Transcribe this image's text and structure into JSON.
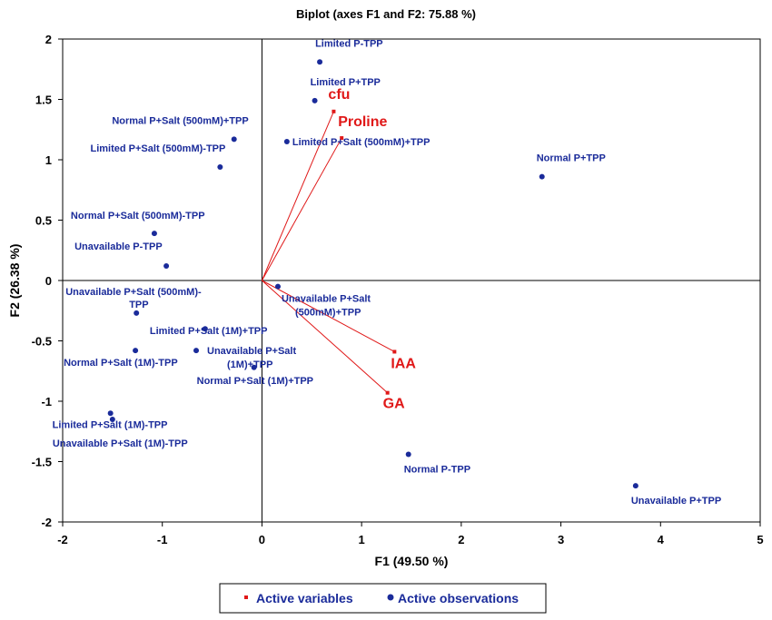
{
  "chart_data": {
    "type": "scatter",
    "title": "Biplot (axes F1 and F2: 75.88 %)",
    "xlabel": "F1 (49.50 %)",
    "ylabel": "F2 (26.38 %)",
    "xlim": [
      -2,
      5
    ],
    "ylim": [
      -2,
      2
    ],
    "xticks": [
      "-2",
      "-1",
      "0",
      "1",
      "2",
      "3",
      "4",
      "5"
    ],
    "yticks": [
      "2",
      "1.5",
      "1",
      "0.5",
      "0",
      "-0.5",
      "-1",
      "-1.5",
      "-2"
    ],
    "grid": false,
    "legend_position": "bottom",
    "colors": {
      "observations": "#1a2b9a",
      "variables": "#e01818"
    },
    "legend": [
      {
        "label": "Active variables",
        "series": "variables"
      },
      {
        "label": "Active observations",
        "series": "observations"
      }
    ],
    "variables": [
      {
        "name": "cfu",
        "x": 0.72,
        "y": 1.4
      },
      {
        "name": "Proline",
        "x": 0.8,
        "y": 1.18
      },
      {
        "name": "IAA",
        "x": 1.33,
        "y": -0.59
      },
      {
        "name": "GA",
        "x": 1.26,
        "y": -0.93
      }
    ],
    "observations": [
      {
        "name": "Limited P-TPP",
        "x": 0.58,
        "y": 1.81
      },
      {
        "name": "Limited P+TPP",
        "x": 0.53,
        "y": 1.49
      },
      {
        "name": "Normal P+Salt (500mM)+TPP",
        "x": -0.28,
        "y": 1.17
      },
      {
        "name": "Limited P+Salt (500mM)-TPP",
        "x": -0.42,
        "y": 0.94
      },
      {
        "name": "Limited P+Salt (500mM)+TPP",
        "x": 0.25,
        "y": 1.15
      },
      {
        "name": "Normal P+TPP",
        "x": 2.81,
        "y": 0.86
      },
      {
        "name": "Normal P+Salt (500mM)-TPP",
        "x": -1.08,
        "y": 0.39
      },
      {
        "name": "Unavailable P-TPP",
        "x": -0.96,
        "y": 0.12
      },
      {
        "name": "Unavailable P+Salt (500mM)+TPP",
        "x": 0.16,
        "y": -0.05
      },
      {
        "name": "Unavailable P+Salt (500mM)-TPP",
        "x": -1.26,
        "y": -0.27
      },
      {
        "name": "Limited P+Salt (1M)+TPP",
        "x": -0.57,
        "y": -0.4
      },
      {
        "name": "Normal P+Salt (1M)-TPP",
        "x": -1.27,
        "y": -0.58
      },
      {
        "name": "Unavailable P+Salt (1M)+TPP",
        "x": -0.66,
        "y": -0.58
      },
      {
        "name": "Normal P+Salt (1M)+TPP",
        "x": -0.08,
        "y": -0.72
      },
      {
        "name": "Limited P+Salt (1M)-TPP",
        "x": -1.52,
        "y": -1.1
      },
      {
        "name": "Unavailable P+Salt (1M)-TPP",
        "x": -1.5,
        "y": -1.15
      },
      {
        "name": "Normal P-TPP",
        "x": 1.47,
        "y": -1.44
      },
      {
        "name": "Unavailable P+TPP",
        "x": 3.75,
        "y": -1.7
      }
    ]
  }
}
